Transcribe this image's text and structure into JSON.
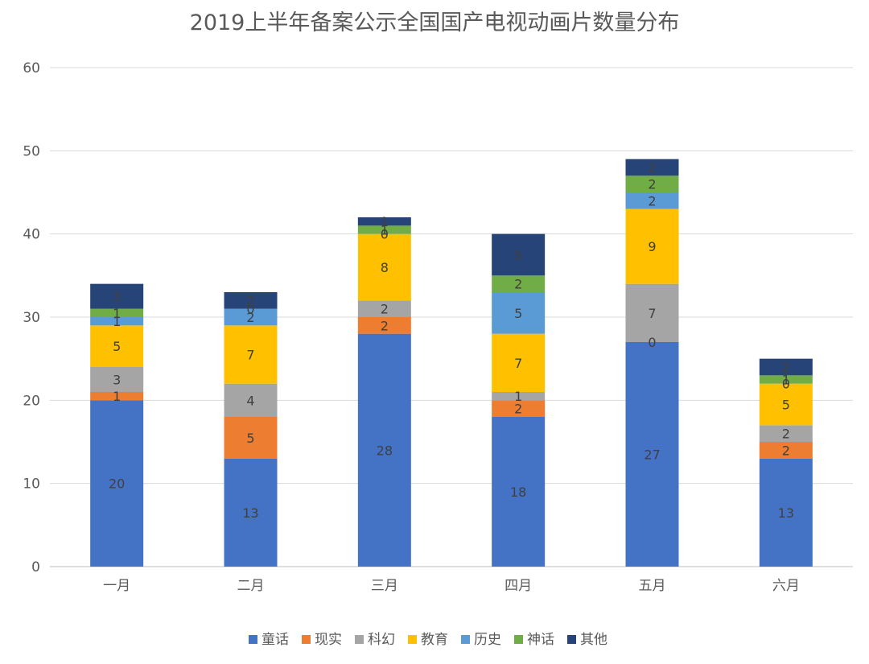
{
  "chart_data": {
    "type": "bar",
    "stacked": true,
    "title": "2019上半年备案公示全国国产电视动画片数量分布",
    "categories": [
      "一月",
      "二月",
      "三月",
      "四月",
      "五月",
      "六月"
    ],
    "ylim": [
      0,
      60
    ],
    "yticks": [
      0,
      10,
      20,
      30,
      40,
      50,
      60
    ],
    "grid": true,
    "legend_position": "bottom",
    "series": [
      {
        "name": "童话",
        "color": "#4472C4",
        "values": [
          20,
          13,
          28,
          18,
          27,
          13
        ]
      },
      {
        "name": "现实",
        "color": "#ED7D31",
        "values": [
          1,
          5,
          2,
          2,
          0,
          2
        ]
      },
      {
        "name": "科幻",
        "color": "#A5A5A5",
        "values": [
          3,
          4,
          2,
          1,
          7,
          2
        ]
      },
      {
        "name": "教育",
        "color": "#FFC000",
        "values": [
          5,
          7,
          8,
          7,
          9,
          5
        ]
      },
      {
        "name": "历史",
        "color": "#5B9BD5",
        "values": [
          1,
          2,
          0,
          5,
          2,
          0
        ]
      },
      {
        "name": "神话",
        "color": "#70AD47",
        "values": [
          1,
          0,
          1,
          2,
          2,
          1
        ]
      },
      {
        "name": "其他",
        "color": "#264478",
        "values": [
          3,
          2,
          1,
          5,
          2,
          2
        ]
      }
    ]
  }
}
